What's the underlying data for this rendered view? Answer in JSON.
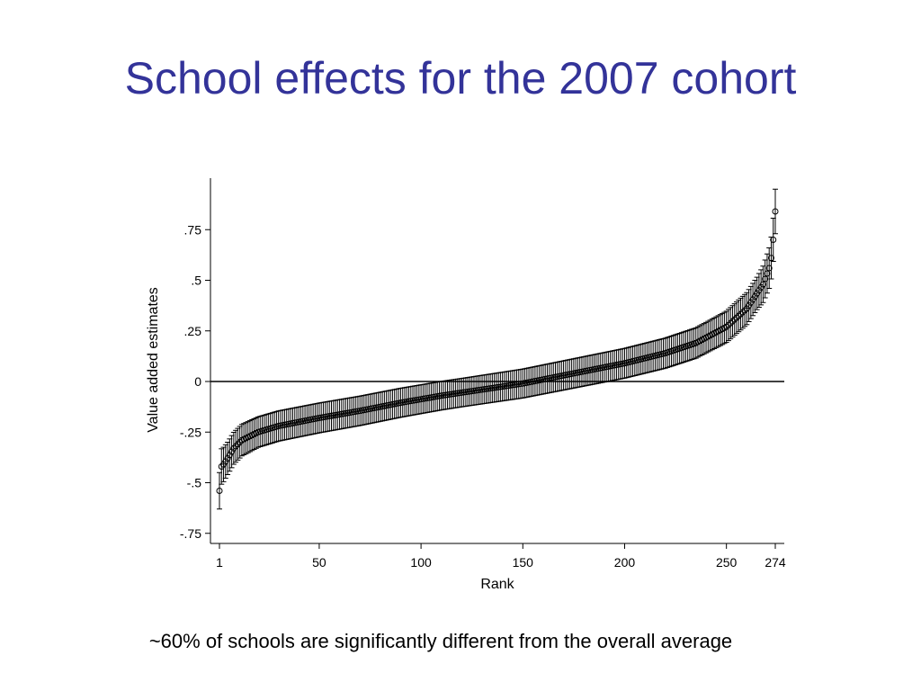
{
  "slide": {
    "title": "School effects for the 2007 cohort",
    "caption": "~60% of schools are significantly different from the overall average"
  },
  "colors": {
    "title": "#333399",
    "marks": "#000000"
  },
  "chart_data": {
    "type": "scatter",
    "subtype": "caterpillar plot with confidence intervals",
    "xlabel": "Rank",
    "ylabel": "Value added estimates",
    "xlim": [
      1,
      274
    ],
    "ylim": [
      -0.78,
      1.0
    ],
    "x_ticks": [
      1,
      50,
      100,
      150,
      200,
      250,
      274
    ],
    "x_tick_labels": [
      "1",
      "50",
      "100",
      "150",
      "200",
      "250",
      "274"
    ],
    "y_ticks": [
      -0.75,
      -0.5,
      -0.25,
      0,
      0.25,
      0.5,
      0.75
    ],
    "y_tick_labels": [
      "-.75",
      "-.5",
      "-.25",
      "0",
      ".25",
      ".5",
      ".75"
    ],
    "reference_line_y": 0,
    "grid": false,
    "legend": "none",
    "n_points": 274,
    "estimate_anchors": [
      [
        1,
        -0.54
      ],
      [
        2,
        -0.42
      ],
      [
        3,
        -0.41
      ],
      [
        5,
        -0.38
      ],
      [
        8,
        -0.33
      ],
      [
        12,
        -0.29
      ],
      [
        20,
        -0.25
      ],
      [
        30,
        -0.22
      ],
      [
        40,
        -0.2
      ],
      [
        50,
        -0.18
      ],
      [
        70,
        -0.145
      ],
      [
        90,
        -0.105
      ],
      [
        110,
        -0.07
      ],
      [
        130,
        -0.04
      ],
      [
        150,
        -0.01
      ],
      [
        170,
        0.03
      ],
      [
        190,
        0.07
      ],
      [
        200,
        0.09
      ],
      [
        220,
        0.14
      ],
      [
        235,
        0.19
      ],
      [
        250,
        0.27
      ],
      [
        260,
        0.36
      ],
      [
        268,
        0.48
      ],
      [
        271,
        0.56
      ],
      [
        272,
        0.61
      ],
      [
        273,
        0.7
      ],
      [
        274,
        0.84
      ]
    ],
    "ci_half_width_anchors": [
      [
        1,
        0.09
      ],
      [
        5,
        0.08
      ],
      [
        20,
        0.075
      ],
      [
        120,
        0.07
      ],
      [
        240,
        0.075
      ],
      [
        265,
        0.08
      ],
      [
        274,
        0.11
      ]
    ]
  }
}
